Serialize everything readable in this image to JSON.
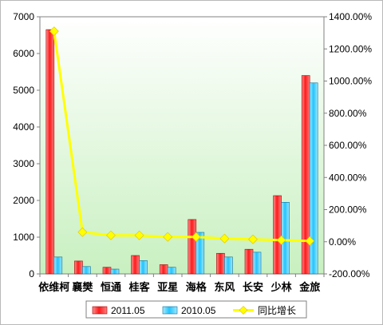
{
  "chart_data": {
    "type": "bar",
    "categories": [
      "依维柯",
      "襄樊",
      "恒通",
      "桂客",
      "亚星",
      "海格",
      "东风",
      "长安",
      "少林",
      "金旅"
    ],
    "series": [
      {
        "name": "2011.05",
        "kind": "bar",
        "axis": "left",
        "color": "#ff2020",
        "values": [
          6650,
          350,
          180,
          500,
          250,
          1480,
          560,
          670,
          2130,
          5400
        ]
      },
      {
        "name": "2010.05",
        "kind": "bar",
        "axis": "left",
        "color": "#33ccff",
        "values": [
          460,
          200,
          130,
          360,
          180,
          1130,
          460,
          590,
          1950,
          5200
        ]
      },
      {
        "name": "同比增长",
        "kind": "line",
        "axis": "right",
        "color": "#ffff00",
        "values": [
          1310,
          60,
          40,
          40,
          30,
          30,
          20,
          15,
          10,
          5
        ]
      }
    ],
    "left_axis": {
      "min": 0,
      "max": 7000,
      "step": 1000,
      "tick_labels": [
        "0",
        "1000",
        "2000",
        "3000",
        "4000",
        "5000",
        "6000",
        "7000"
      ]
    },
    "right_axis": {
      "min": -200,
      "max": 1400,
      "step": 200,
      "tick_labels": [
        "-200.00%",
        "0.00%",
        "200.00%",
        "400.00%",
        "600.00%",
        "800.00%",
        "1000.00%",
        "1200.00%",
        "1400.00%"
      ]
    },
    "legend_position": "bottom",
    "grid": false
  }
}
